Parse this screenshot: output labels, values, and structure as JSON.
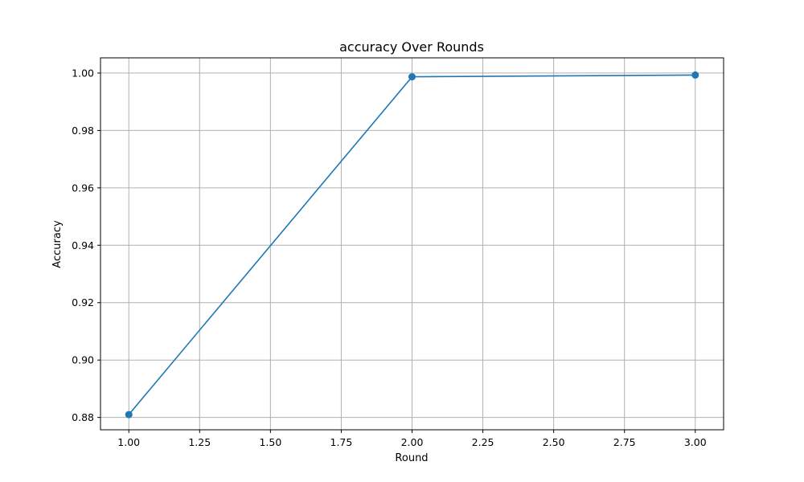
{
  "chart_data": {
    "type": "line",
    "title": "accuracy Over Rounds",
    "xlabel": "Round",
    "ylabel": "Accuracy",
    "xlim": [
      0.9,
      3.1
    ],
    "ylim": [
      0.8757,
      1.0053
    ],
    "grid": true,
    "legend": "none",
    "x_ticks": [
      1.0,
      1.25,
      1.5,
      1.75,
      2.0,
      2.25,
      2.5,
      2.75,
      3.0
    ],
    "x_tick_labels": [
      "1.00",
      "1.25",
      "1.50",
      "1.75",
      "2.00",
      "2.25",
      "2.50",
      "2.75",
      "3.00"
    ],
    "y_ticks": [
      0.88,
      0.9,
      0.92,
      0.94,
      0.96,
      0.98,
      1.0
    ],
    "y_tick_labels": [
      "0.88",
      "0.90",
      "0.92",
      "0.94",
      "0.96",
      "0.98",
      "1.00"
    ],
    "series": [
      {
        "color": "#1f77b4",
        "marker": "circle",
        "x": [
          1,
          2,
          3
        ],
        "y": [
          0.881,
          0.9987,
          0.9993
        ]
      }
    ]
  }
}
